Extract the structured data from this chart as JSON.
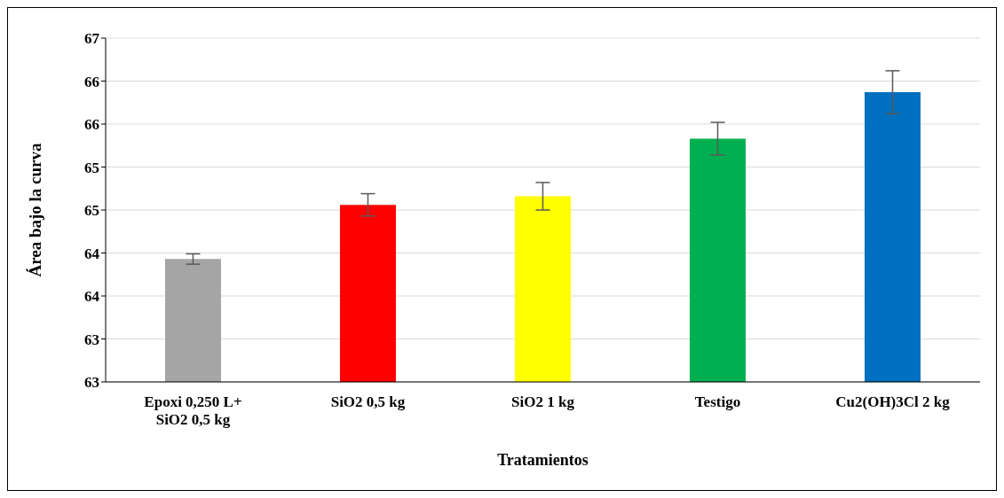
{
  "chart_data": {
    "type": "bar",
    "xlabel": "Tratamientos",
    "ylabel": "Área bajo la curva",
    "categories": [
      "Epoxi 0,250 L+ SiO2 0,5 kg",
      "SiO2 0,5 kg",
      "SiO2 1 kg",
      "Testigo",
      "Cu2(OH)3Cl 2 kg"
    ],
    "values": [
      64.43,
      65.06,
      65.16,
      65.83,
      66.37
    ],
    "colors": [
      "#a5a5a5",
      "#ff0000",
      "#ffff00",
      "#00b050",
      "#0070c0"
    ],
    "errors": [
      0.06,
      0.13,
      0.16,
      0.19,
      0.25
    ],
    "ylim": [
      63,
      67
    ],
    "yticks": [
      {
        "value": 63,
        "label": "63"
      },
      {
        "value": 63.5,
        "label": "63"
      },
      {
        "value": 64,
        "label": "64"
      },
      {
        "value": 64.5,
        "label": "64"
      },
      {
        "value": 65,
        "label": "65"
      },
      {
        "value": 65.5,
        "label": "65"
      },
      {
        "value": 66,
        "label": "66"
      },
      {
        "value": 66.5,
        "label": "66"
      },
      {
        "value": 67,
        "label": "67"
      }
    ],
    "grid": "y"
  }
}
